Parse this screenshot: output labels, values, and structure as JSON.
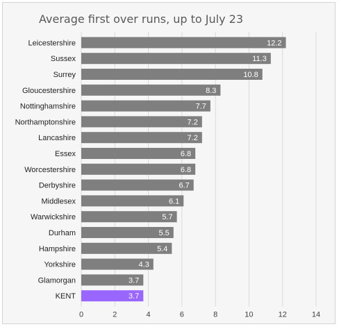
{
  "chart_data": {
    "type": "bar",
    "orientation": "horizontal",
    "title": "Average first over runs, up to July 23",
    "categories": [
      "Leicestershire",
      "Sussex",
      "Surrey",
      "Gloucestershire",
      "Nottinghamshire",
      "Northamptonshire",
      "Lancashire",
      "Essex",
      "Worcestershire",
      "Derbyshire",
      "Middlesex",
      "Warwickshire",
      "Durham",
      "Hampshire",
      "Yorkshire",
      "Glamorgan",
      "KENT"
    ],
    "values": [
      12.2,
      11.3,
      10.8,
      8.3,
      7.7,
      7.2,
      7.2,
      6.8,
      6.8,
      6.7,
      6.1,
      5.7,
      5.5,
      5.4,
      4.3,
      3.7,
      3.7
    ],
    "value_labels": [
      "12.2",
      "11.3",
      "10.8",
      "8.3",
      "7.7",
      "7.2",
      "7.2",
      "6.8",
      "6.8",
      "6.7",
      "6.1",
      "5.7",
      "5.5",
      "5.4",
      "4.3",
      "3.7",
      "3.7"
    ],
    "xlim": [
      0,
      14
    ],
    "xticks": [
      0,
      2,
      4,
      6,
      8,
      10,
      12,
      14
    ],
    "xlabel": "",
    "ylabel": "",
    "grid": "vertical",
    "legend": "none",
    "bar_color": "#7f7f7f",
    "highlight_category": "KENT",
    "highlight_color": "#9966ff",
    "background_color": "#f6f6f6"
  }
}
